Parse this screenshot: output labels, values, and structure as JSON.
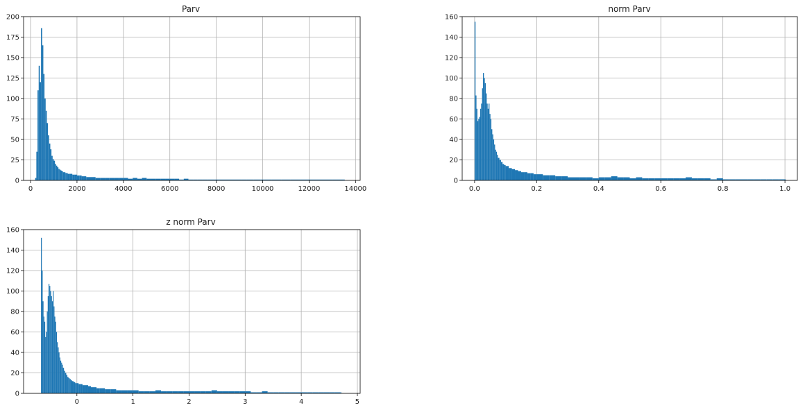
{
  "chart_data": [
    {
      "type": "histogram",
      "title": "Parv",
      "xlim": [
        -300,
        14200
      ],
      "ylim": [
        0,
        200
      ],
      "xticks": [
        0,
        2000,
        4000,
        6000,
        8000,
        10000,
        12000,
        14000
      ],
      "yticks": [
        0,
        25,
        50,
        75,
        100,
        125,
        150,
        175,
        200
      ],
      "grid": true,
      "color": "#1f77b4",
      "bins": [
        [
          150,
          0
        ],
        [
          200,
          3
        ],
        [
          250,
          35
        ],
        [
          300,
          110
        ],
        [
          350,
          140
        ],
        [
          400,
          120
        ],
        [
          450,
          186
        ],
        [
          500,
          165
        ],
        [
          550,
          130
        ],
        [
          600,
          100
        ],
        [
          650,
          85
        ],
        [
          700,
          70
        ],
        [
          750,
          55
        ],
        [
          800,
          45
        ],
        [
          850,
          38
        ],
        [
          900,
          30
        ],
        [
          950,
          26
        ],
        [
          1000,
          24
        ],
        [
          1050,
          20
        ],
        [
          1100,
          18
        ],
        [
          1150,
          16
        ],
        [
          1200,
          14
        ],
        [
          1250,
          13
        ],
        [
          1300,
          12
        ],
        [
          1350,
          11
        ],
        [
          1400,
          10
        ],
        [
          1450,
          10
        ],
        [
          1500,
          9
        ],
        [
          1550,
          9
        ],
        [
          1600,
          8
        ],
        [
          1700,
          8
        ],
        [
          1800,
          7
        ],
        [
          1900,
          7
        ],
        [
          2000,
          6
        ],
        [
          2100,
          6
        ],
        [
          2200,
          5
        ],
        [
          2300,
          5
        ],
        [
          2400,
          4
        ],
        [
          2600,
          4
        ],
        [
          2800,
          3
        ],
        [
          3000,
          3
        ],
        [
          3200,
          3
        ],
        [
          3400,
          3
        ],
        [
          3600,
          3
        ],
        [
          3800,
          3
        ],
        [
          4000,
          3
        ],
        [
          4200,
          2
        ],
        [
          4400,
          3
        ],
        [
          4600,
          2
        ],
        [
          4800,
          3
        ],
        [
          5000,
          2
        ],
        [
          5200,
          2
        ],
        [
          5400,
          2
        ],
        [
          5600,
          2
        ],
        [
          5800,
          2
        ],
        [
          6000,
          2
        ],
        [
          6200,
          2
        ],
        [
          6400,
          1
        ],
        [
          6600,
          2
        ],
        [
          6800,
          1
        ],
        [
          7000,
          1
        ],
        [
          7200,
          1
        ],
        [
          7400,
          1
        ],
        [
          7600,
          1
        ],
        [
          7900,
          1
        ],
        [
          8100,
          1
        ],
        [
          8400,
          1
        ],
        [
          9100,
          1
        ],
        [
          9300,
          1
        ],
        [
          9600,
          1
        ],
        [
          9900,
          1
        ],
        [
          10100,
          1
        ],
        [
          10400,
          1
        ],
        [
          10800,
          1
        ],
        [
          11200,
          1
        ],
        [
          11600,
          1
        ],
        [
          11900,
          1
        ],
        [
          12300,
          1
        ],
        [
          12600,
          1
        ],
        [
          13000,
          1
        ],
        [
          13200,
          1
        ],
        [
          13500,
          1
        ]
      ]
    },
    {
      "type": "histogram",
      "title": "norm Parv",
      "xlim": [
        -0.04,
        1.04
      ],
      "ylim": [
        0,
        160
      ],
      "xticks": [
        0.0,
        0.2,
        0.4,
        0.6,
        0.8,
        1.0
      ],
      "yticks": [
        0,
        20,
        40,
        60,
        80,
        100,
        120,
        140,
        160
      ],
      "grid": true,
      "color": "#1f77b4",
      "bins": [
        [
          0.0,
          155
        ],
        [
          0.003,
          83
        ],
        [
          0.006,
          70
        ],
        [
          0.009,
          58
        ],
        [
          0.012,
          60
        ],
        [
          0.015,
          62
        ],
        [
          0.018,
          70
        ],
        [
          0.021,
          75
        ],
        [
          0.024,
          90
        ],
        [
          0.027,
          105
        ],
        [
          0.03,
          100
        ],
        [
          0.033,
          95
        ],
        [
          0.036,
          85
        ],
        [
          0.039,
          75
        ],
        [
          0.042,
          70
        ],
        [
          0.045,
          75
        ],
        [
          0.048,
          65
        ],
        [
          0.051,
          60
        ],
        [
          0.054,
          50
        ],
        [
          0.057,
          45
        ],
        [
          0.06,
          40
        ],
        [
          0.063,
          35
        ],
        [
          0.066,
          30
        ],
        [
          0.069,
          28
        ],
        [
          0.072,
          25
        ],
        [
          0.075,
          22
        ],
        [
          0.08,
          20
        ],
        [
          0.085,
          18
        ],
        [
          0.09,
          16
        ],
        [
          0.095,
          15
        ],
        [
          0.1,
          14
        ],
        [
          0.11,
          12
        ],
        [
          0.12,
          11
        ],
        [
          0.13,
          10
        ],
        [
          0.14,
          9
        ],
        [
          0.15,
          8
        ],
        [
          0.16,
          8
        ],
        [
          0.17,
          7
        ],
        [
          0.18,
          7
        ],
        [
          0.19,
          6
        ],
        [
          0.2,
          6
        ],
        [
          0.22,
          5
        ],
        [
          0.24,
          5
        ],
        [
          0.26,
          4
        ],
        [
          0.28,
          4
        ],
        [
          0.3,
          3
        ],
        [
          0.32,
          3
        ],
        [
          0.34,
          3
        ],
        [
          0.36,
          3
        ],
        [
          0.38,
          2
        ],
        [
          0.4,
          3
        ],
        [
          0.42,
          3
        ],
        [
          0.44,
          4
        ],
        [
          0.46,
          3
        ],
        [
          0.48,
          3
        ],
        [
          0.5,
          2
        ],
        [
          0.52,
          3
        ],
        [
          0.54,
          2
        ],
        [
          0.56,
          2
        ],
        [
          0.58,
          2
        ],
        [
          0.6,
          2
        ],
        [
          0.62,
          2
        ],
        [
          0.64,
          2
        ],
        [
          0.66,
          2
        ],
        [
          0.68,
          3
        ],
        [
          0.7,
          2
        ],
        [
          0.72,
          2
        ],
        [
          0.74,
          2
        ],
        [
          0.76,
          1
        ],
        [
          0.78,
          2
        ],
        [
          0.8,
          1
        ],
        [
          0.82,
          1
        ],
        [
          0.84,
          1
        ],
        [
          0.86,
          1
        ],
        [
          0.88,
          1
        ],
        [
          0.9,
          1
        ],
        [
          0.92,
          1
        ],
        [
          0.94,
          1
        ],
        [
          0.96,
          1
        ],
        [
          0.98,
          1
        ],
        [
          1.0,
          1
        ]
      ]
    },
    {
      "type": "histogram",
      "title": "z norm Parv",
      "xlim": [
        -0.95,
        5.05
      ],
      "ylim": [
        0,
        160
      ],
      "xticks": [
        0,
        1,
        2,
        3,
        4,
        5
      ],
      "yticks": [
        0,
        20,
        40,
        60,
        80,
        100,
        120,
        140,
        160
      ],
      "grid": true,
      "color": "#1f77b4",
      "bins": [
        [
          -0.64,
          152
        ],
        [
          -0.625,
          120
        ],
        [
          -0.61,
          90
        ],
        [
          -0.595,
          75
        ],
        [
          -0.58,
          70
        ],
        [
          -0.565,
          55
        ],
        [
          -0.55,
          60
        ],
        [
          -0.535,
          80
        ],
        [
          -0.52,
          95
        ],
        [
          -0.505,
          107
        ],
        [
          -0.49,
          105
        ],
        [
          -0.475,
          100
        ],
        [
          -0.46,
          95
        ],
        [
          -0.445,
          90
        ],
        [
          -0.43,
          100
        ],
        [
          -0.415,
          85
        ],
        [
          -0.4,
          75
        ],
        [
          -0.385,
          70
        ],
        [
          -0.37,
          60
        ],
        [
          -0.355,
          50
        ],
        [
          -0.34,
          45
        ],
        [
          -0.325,
          40
        ],
        [
          -0.31,
          35
        ],
        [
          -0.295,
          32
        ],
        [
          -0.28,
          30
        ],
        [
          -0.265,
          28
        ],
        [
          -0.25,
          25
        ],
        [
          -0.23,
          22
        ],
        [
          -0.21,
          20
        ],
        [
          -0.19,
          18
        ],
        [
          -0.17,
          16
        ],
        [
          -0.15,
          15
        ],
        [
          -0.13,
          14
        ],
        [
          -0.11,
          13
        ],
        [
          -0.09,
          12
        ],
        [
          -0.06,
          11
        ],
        [
          -0.03,
          10
        ],
        [
          0.0,
          10
        ],
        [
          0.03,
          9
        ],
        [
          0.06,
          9
        ],
        [
          0.1,
          8
        ],
        [
          0.15,
          8
        ],
        [
          0.2,
          7
        ],
        [
          0.25,
          6
        ],
        [
          0.3,
          6
        ],
        [
          0.35,
          5
        ],
        [
          0.4,
          5
        ],
        [
          0.5,
          4
        ],
        [
          0.6,
          4
        ],
        [
          0.7,
          3
        ],
        [
          0.8,
          3
        ],
        [
          0.9,
          3
        ],
        [
          1.0,
          3
        ],
        [
          1.1,
          2
        ],
        [
          1.2,
          2
        ],
        [
          1.3,
          2
        ],
        [
          1.4,
          3
        ],
        [
          1.5,
          2
        ],
        [
          1.6,
          2
        ],
        [
          1.7,
          2
        ],
        [
          1.8,
          2
        ],
        [
          1.9,
          2
        ],
        [
          2.0,
          2
        ],
        [
          2.1,
          2
        ],
        [
          2.2,
          2
        ],
        [
          2.3,
          2
        ],
        [
          2.4,
          3
        ],
        [
          2.5,
          2
        ],
        [
          2.6,
          2
        ],
        [
          2.7,
          2
        ],
        [
          2.8,
          2
        ],
        [
          2.9,
          2
        ],
        [
          3.0,
          2
        ],
        [
          3.1,
          1
        ],
        [
          3.2,
          1
        ],
        [
          3.3,
          2
        ],
        [
          3.4,
          1
        ],
        [
          3.5,
          1
        ],
        [
          3.6,
          1
        ],
        [
          3.7,
          1
        ],
        [
          3.8,
          1
        ],
        [
          3.9,
          1
        ],
        [
          4.0,
          1
        ],
        [
          4.1,
          1
        ],
        [
          4.2,
          1
        ],
        [
          4.3,
          1
        ],
        [
          4.4,
          1
        ],
        [
          4.5,
          1
        ],
        [
          4.6,
          1
        ],
        [
          4.7,
          1
        ]
      ]
    }
  ]
}
